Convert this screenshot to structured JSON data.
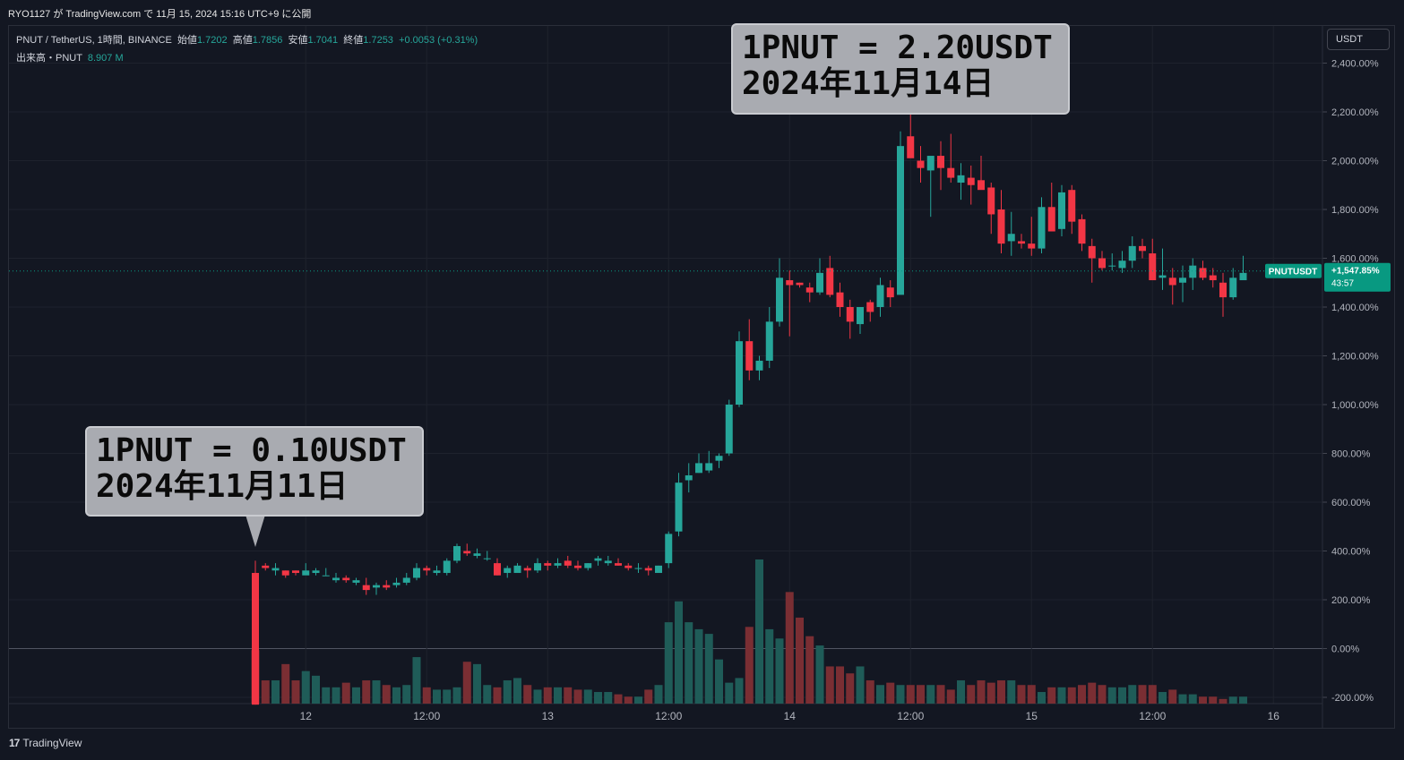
{
  "header": {
    "publish_line": "RYO1127 が TradingView.com で 11月 15, 2024 15:16 UTC+9 に公開"
  },
  "legend": {
    "symbol": "PNUT / TetherUS, 1時間, BINANCE",
    "open_label": "始値",
    "open": "1.7202",
    "high_label": "高値",
    "high": "1.7856",
    "low_label": "安値",
    "low": "1.7041",
    "close_label": "終値",
    "close": "1.7253",
    "change": "+0.0053 (+0.31%)",
    "volume_label": "出来高・PNUT",
    "volume": "8.907 M"
  },
  "unit_button": "USDT",
  "annotations": {
    "high_box": {
      "line1": "1PNUT = 2.20USDT",
      "line2": "2024年11月14日"
    },
    "low_box": {
      "line1": "1PNUT = 0.10USDT",
      "line2": "2024年11月11日"
    }
  },
  "price_tag": {
    "symbol": "PNUTUSDT",
    "value": "+1,547.85%",
    "countdown": "43:57"
  },
  "footer": {
    "brand": "TradingView"
  },
  "colors": {
    "up": "#26a69a",
    "down": "#f23645",
    "vol_up": "#1f5c58",
    "vol_down": "#7a2e33",
    "tag": "#089981"
  },
  "chart_data": {
    "type": "candlestick",
    "scale": "percent",
    "y_ticks": [
      "2,400.00%",
      "2,200.00%",
      "2,000.00%",
      "1,800.00%",
      "1,600.00%",
      "1,400.00%",
      "1,200.00%",
      "1,000.00%",
      "800.00%",
      "600.00%",
      "400.00%",
      "200.00%",
      "0.00%",
      "-200.00%"
    ],
    "y_tick_values": [
      2400,
      2200,
      2000,
      1800,
      1600,
      1400,
      1200,
      1000,
      800,
      600,
      400,
      200,
      0,
      -200
    ],
    "ylim": [
      -230,
      2560
    ],
    "x_ticks": [
      "12",
      "12:00",
      "13",
      "12:00",
      "14",
      "12:00",
      "15",
      "12:00",
      "16"
    ],
    "x_tick_hours": [
      5,
      17,
      29,
      41,
      53,
      65,
      77,
      89,
      101
    ],
    "x_range_hours": [
      -8,
      110
    ],
    "last_value": 1547.85,
    "series": [
      [
        0,
        310,
        360,
        -230,
        -230
      ],
      [
        1,
        340,
        350,
        320,
        330
      ],
      [
        2,
        320,
        350,
        300,
        330
      ],
      [
        3,
        320,
        320,
        290,
        300
      ],
      [
        4,
        320,
        320,
        300,
        310
      ],
      [
        5,
        300,
        350,
        310,
        320
      ],
      [
        6,
        310,
        330,
        300,
        320
      ],
      [
        7,
        300,
        330,
        300,
        300
      ],
      [
        8,
        280,
        310,
        270,
        290
      ],
      [
        9,
        290,
        300,
        270,
        280
      ],
      [
        10,
        270,
        290,
        260,
        280
      ],
      [
        11,
        260,
        290,
        220,
        240
      ],
      [
        12,
        250,
        270,
        220,
        260
      ],
      [
        13,
        260,
        280,
        240,
        250
      ],
      [
        14,
        260,
        290,
        250,
        270
      ],
      [
        15,
        270,
        310,
        260,
        290
      ],
      [
        16,
        290,
        350,
        280,
        330
      ],
      [
        17,
        330,
        340,
        300,
        320
      ],
      [
        18,
        310,
        340,
        300,
        320
      ],
      [
        19,
        310,
        370,
        300,
        360
      ],
      [
        20,
        360,
        430,
        350,
        420
      ],
      [
        21,
        400,
        430,
        380,
        390
      ],
      [
        22,
        380,
        410,
        370,
        390
      ],
      [
        23,
        370,
        400,
        360,
        370
      ],
      [
        24,
        350,
        370,
        300,
        300
      ],
      [
        25,
        310,
        340,
        290,
        330
      ],
      [
        26,
        310,
        350,
        310,
        340
      ],
      [
        27,
        330,
        340,
        290,
        320
      ],
      [
        28,
        320,
        370,
        310,
        350
      ],
      [
        29,
        350,
        360,
        320,
        340
      ],
      [
        30,
        340,
        370,
        330,
        350
      ],
      [
        31,
        360,
        380,
        330,
        340
      ],
      [
        32,
        340,
        360,
        320,
        330
      ],
      [
        33,
        330,
        350,
        320,
        350
      ],
      [
        34,
        360,
        380,
        340,
        370
      ],
      [
        35,
        350,
        380,
        340,
        360
      ],
      [
        36,
        350,
        370,
        340,
        340
      ],
      [
        37,
        340,
        350,
        320,
        330
      ],
      [
        38,
        330,
        350,
        310,
        330
      ],
      [
        39,
        330,
        340,
        300,
        320
      ],
      [
        40,
        310,
        340,
        310,
        340
      ],
      [
        41,
        350,
        480,
        330,
        470
      ],
      [
        42,
        480,
        720,
        460,
        680
      ],
      [
        43,
        690,
        760,
        640,
        710
      ],
      [
        44,
        720,
        800,
        720,
        760
      ],
      [
        45,
        730,
        810,
        720,
        760
      ],
      [
        46,
        770,
        800,
        740,
        790
      ],
      [
        47,
        800,
        1020,
        790,
        1000
      ],
      [
        48,
        1000,
        1300,
        990,
        1260
      ],
      [
        49,
        1260,
        1350,
        1100,
        1140
      ],
      [
        50,
        1140,
        1200,
        1100,
        1180
      ],
      [
        51,
        1180,
        1400,
        1150,
        1340
      ],
      [
        52,
        1340,
        1600,
        1320,
        1520
      ],
      [
        53,
        1510,
        1550,
        1280,
        1490
      ],
      [
        54,
        1500,
        1500,
        1480,
        1490
      ],
      [
        55,
        1480,
        1500,
        1420,
        1460
      ],
      [
        56,
        1460,
        1600,
        1450,
        1540
      ],
      [
        57,
        1560,
        1610,
        1440,
        1450
      ],
      [
        58,
        1460,
        1500,
        1360,
        1400
      ],
      [
        59,
        1400,
        1430,
        1270,
        1340
      ],
      [
        60,
        1330,
        1390,
        1290,
        1400
      ],
      [
        61,
        1420,
        1430,
        1340,
        1380
      ],
      [
        62,
        1400,
        1520,
        1360,
        1490
      ],
      [
        63,
        1480,
        1510,
        1400,
        1440
      ],
      [
        64,
        1450,
        2120,
        1480,
        2060
      ],
      [
        65,
        2100,
        2300,
        2020,
        2010
      ],
      [
        66,
        2000,
        2060,
        1910,
        1970
      ],
      [
        67,
        1960,
        2010,
        1770,
        2020
      ],
      [
        68,
        2020,
        2080,
        1880,
        1970
      ],
      [
        69,
        1970,
        2110,
        1910,
        1930
      ],
      [
        70,
        1910,
        1990,
        1840,
        1940
      ],
      [
        71,
        1930,
        1980,
        1820,
        1900
      ],
      [
        72,
        1920,
        2020,
        1890,
        1880
      ],
      [
        73,
        1890,
        1910,
        1700,
        1780
      ],
      [
        74,
        1800,
        1880,
        1620,
        1660
      ],
      [
        75,
        1670,
        1790,
        1610,
        1700
      ],
      [
        76,
        1670,
        1700,
        1640,
        1660
      ],
      [
        77,
        1660,
        1770,
        1610,
        1640
      ],
      [
        78,
        1640,
        1850,
        1620,
        1810
      ],
      [
        79,
        1810,
        1910,
        1730,
        1710
      ],
      [
        80,
        1720,
        1900,
        1690,
        1870
      ],
      [
        81,
        1880,
        1900,
        1700,
        1750
      ],
      [
        82,
        1760,
        1780,
        1630,
        1660
      ],
      [
        83,
        1650,
        1680,
        1500,
        1600
      ],
      [
        84,
        1600,
        1630,
        1550,
        1560
      ],
      [
        85,
        1570,
        1620,
        1550,
        1570
      ],
      [
        86,
        1560,
        1630,
        1540,
        1590
      ],
      [
        87,
        1590,
        1690,
        1560,
        1650
      ],
      [
        88,
        1650,
        1680,
        1600,
        1630
      ],
      [
        89,
        1620,
        1680,
        1510,
        1510
      ],
      [
        90,
        1520,
        1640,
        1470,
        1530
      ],
      [
        91,
        1520,
        1560,
        1410,
        1490
      ],
      [
        92,
        1500,
        1570,
        1420,
        1520
      ],
      [
        93,
        1520,
        1600,
        1470,
        1570
      ],
      [
        94,
        1560,
        1590,
        1510,
        1520
      ],
      [
        95,
        1530,
        1560,
        1480,
        1510
      ],
      [
        96,
        1500,
        1540,
        1360,
        1440
      ],
      [
        97,
        1440,
        1560,
        1430,
        1520
      ],
      [
        98,
        1510,
        1610,
        1510,
        1540
      ]
    ],
    "volume": [
      230,
      100,
      100,
      170,
      100,
      140,
      120,
      70,
      70,
      90,
      70,
      100,
      100,
      80,
      70,
      80,
      200,
      70,
      60,
      60,
      70,
      180,
      170,
      80,
      70,
      100,
      110,
      80,
      60,
      70,
      70,
      70,
      60,
      60,
      50,
      50,
      40,
      30,
      30,
      60,
      80,
      350,
      440,
      350,
      320,
      300,
      190,
      90,
      110,
      330,
      620,
      320,
      280,
      480,
      370,
      290,
      250,
      160,
      160,
      130,
      160,
      100,
      80,
      90,
      80,
      80,
      80,
      80,
      80,
      60,
      100,
      80,
      100,
      90,
      100,
      100,
      80,
      80,
      50,
      70,
      70,
      70,
      80,
      90,
      80,
      70,
      70,
      80,
      80,
      80,
      50,
      60,
      40,
      40,
      30,
      30,
      20,
      30,
      30
    ],
    "volume_max": 620
  }
}
